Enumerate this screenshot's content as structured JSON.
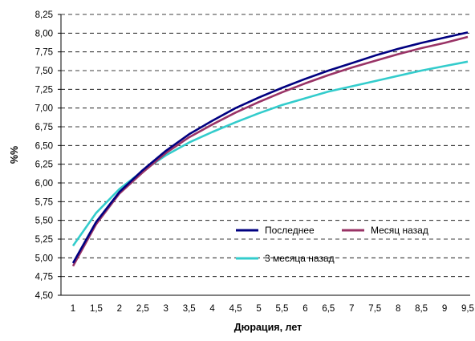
{
  "chart_data": {
    "type": "line",
    "title": "",
    "xlabel": "Дюрация, лет",
    "ylabel": "%%",
    "x": [
      1,
      1.5,
      2,
      2.5,
      3,
      3.5,
      4,
      4.5,
      5,
      5.5,
      6,
      6.5,
      7,
      7.5,
      8,
      8.5,
      9,
      9.5
    ],
    "x_tick_labels": [
      "1",
      "1,5",
      "2",
      "2,5",
      "3",
      "3,5",
      "4",
      "4,5",
      "5",
      "5,5",
      "6",
      "6,5",
      "7",
      "7,5",
      "8",
      "8,5",
      "9",
      "9,5"
    ],
    "y_tick_labels": [
      "4,50",
      "4,75",
      "5,00",
      "5,25",
      "5,50",
      "5,75",
      "6,00",
      "6,25",
      "6,50",
      "6,75",
      "7,00",
      "7,25",
      "7,50",
      "7,75",
      "8,00",
      "8,25"
    ],
    "ylim": [
      4.5,
      8.25
    ],
    "y_step": 0.25,
    "grid": true,
    "legend_position": "bottom-right inside plot",
    "series": [
      {
        "name": "Последнее",
        "color": "#000080",
        "values": [
          4.93,
          5.48,
          5.88,
          6.17,
          6.43,
          6.65,
          6.83,
          7.0,
          7.14,
          7.27,
          7.39,
          7.5,
          7.6,
          7.7,
          7.79,
          7.87,
          7.94,
          8.01
        ]
      },
      {
        "name": "Месяц назад",
        "color": "#993366",
        "values": [
          4.89,
          5.45,
          5.86,
          6.14,
          6.4,
          6.61,
          6.78,
          6.94,
          7.08,
          7.21,
          7.33,
          7.44,
          7.54,
          7.63,
          7.72,
          7.8,
          7.87,
          7.95
        ]
      },
      {
        "name": "3 месяца назад",
        "color": "#33CCCC",
        "values": [
          5.16,
          5.6,
          5.92,
          6.16,
          6.37,
          6.54,
          6.68,
          6.81,
          6.93,
          7.04,
          7.13,
          7.22,
          7.29,
          7.36,
          7.43,
          7.5,
          7.56,
          7.62
        ]
      }
    ]
  }
}
